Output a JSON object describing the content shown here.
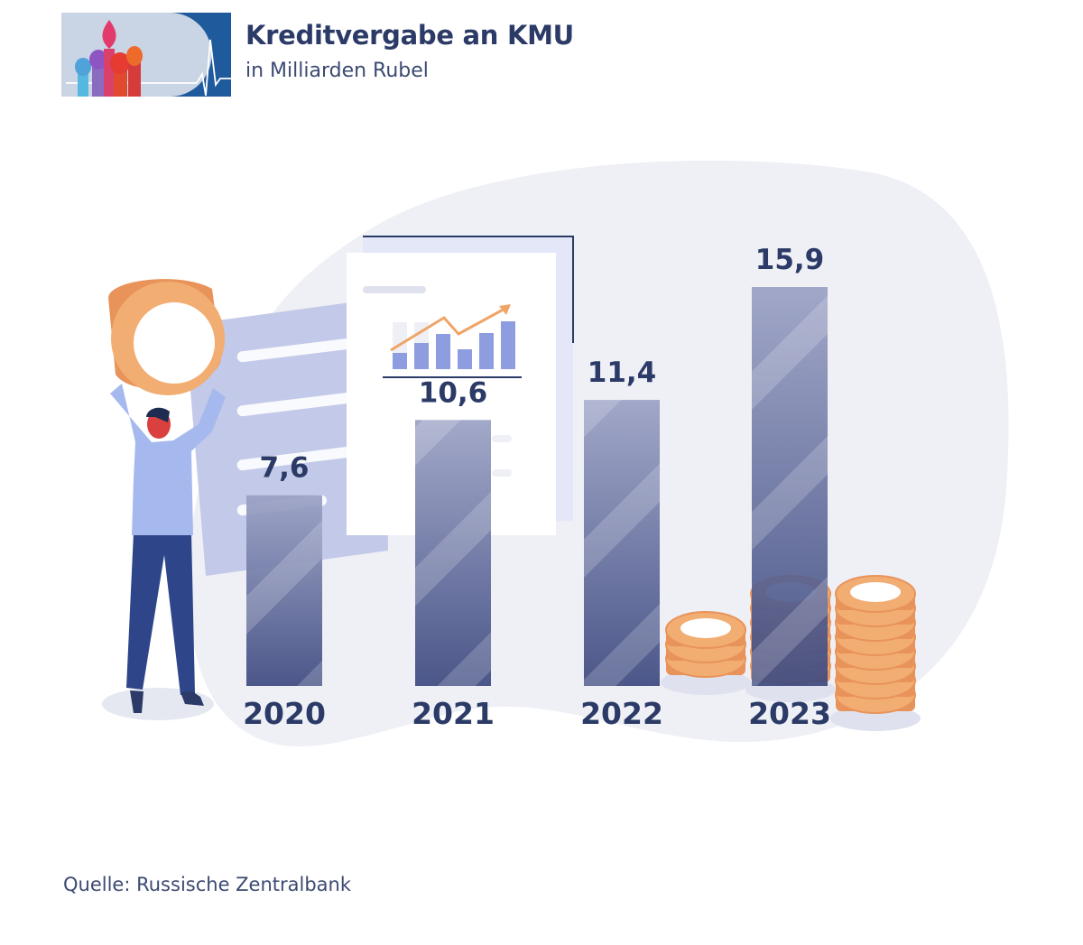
{
  "title": "Kreditvergabe an KMU",
  "subtitle": "in Milliarden Rubel",
  "source": "Quelle: Russische Zentralbank",
  "icons": {
    "logo": "kremlin-domes-heartbeat-logo",
    "illustration": "person-holding-coin-icon",
    "coins": "coin-stack-icon",
    "report": "growth-chart-document-icon"
  },
  "colors": {
    "title": "#2b3a66",
    "bar_top": "#9aa1c4",
    "bar_bottom": "#3e4a80",
    "coin": "#f0a467",
    "blob": "#eef0f6"
  },
  "chart_data": {
    "type": "bar",
    "categories": [
      "2020",
      "2021",
      "2022",
      "2023"
    ],
    "values": [
      7.6,
      10.6,
      11.4,
      15.9
    ],
    "value_labels": [
      "7,6",
      "10,6",
      "11,4",
      "15,9"
    ],
    "title": "Kreditvergabe an KMU",
    "subtitle": "in Milliarden Rubel",
    "xlabel": "",
    "ylabel": "",
    "ylim": [
      0,
      15.9
    ],
    "grid": false,
    "legend": "none"
  }
}
